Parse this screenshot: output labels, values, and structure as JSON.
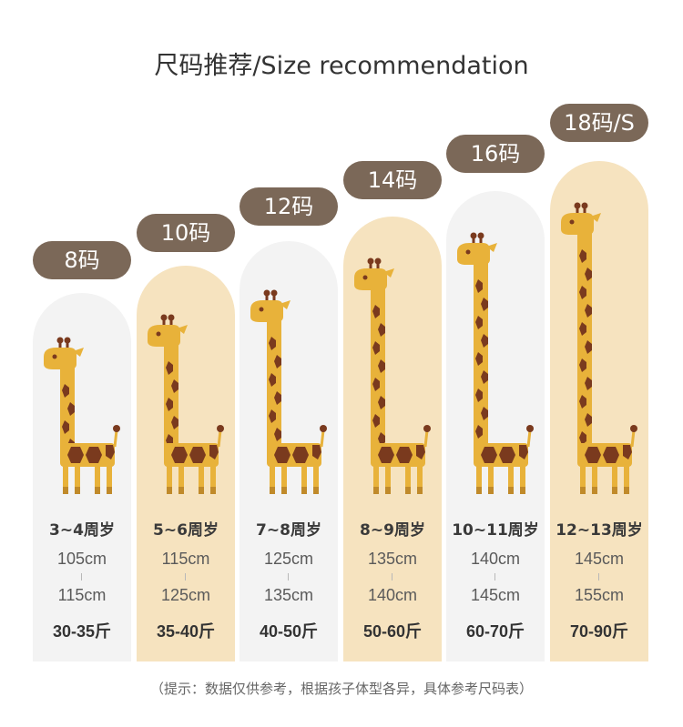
{
  "title": "尺码推荐/Size recommendation",
  "colors": {
    "pill": "#7b6858",
    "light_bg": "#f3f3f3",
    "warm_bg": "#f6e3bf",
    "giraffe_body": "#e8b23a",
    "giraffe_spot": "#7a3a1e"
  },
  "sizes": [
    {
      "label": "8码",
      "age": "3~4周岁",
      "height_min": "105cm",
      "height_max": "115cm",
      "weight": "30-35斤",
      "tone": "light"
    },
    {
      "label": "10码",
      "age": "5~6周岁",
      "height_min": "115cm",
      "height_max": "125cm",
      "weight": "35-40斤",
      "tone": "warm"
    },
    {
      "label": "12码",
      "age": "7~8周岁",
      "height_min": "125cm",
      "height_max": "135cm",
      "weight": "40-50斤",
      "tone": "light"
    },
    {
      "label": "14码",
      "age": "8~9周岁",
      "height_min": "135cm",
      "height_max": "140cm",
      "weight": "50-60斤",
      "tone": "warm"
    },
    {
      "label": "16码",
      "age": "10~11周岁",
      "height_min": "140cm",
      "height_max": "145cm",
      "weight": "60-70斤",
      "tone": "light"
    },
    {
      "label": "18码/S",
      "age": "12~13周岁",
      "height_min": "145cm",
      "height_max": "155cm",
      "weight": "70-90斤",
      "tone": "warm"
    }
  ],
  "note": "（提示：数据仅供参考，根据孩子体型各异，具体参考尺码表）"
}
